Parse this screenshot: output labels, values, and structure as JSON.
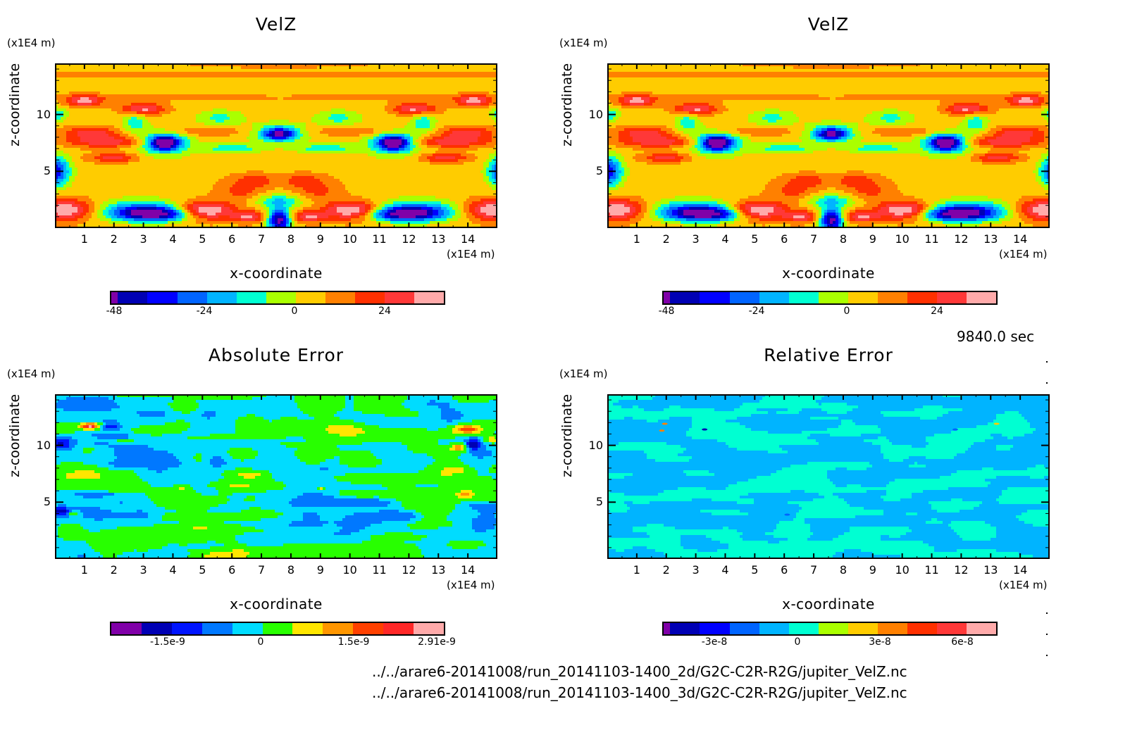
{
  "panels": [
    {
      "id": "velz-2d",
      "title": "VelZ",
      "y_unit": "(x1E4 m)",
      "x_unit": "(x1E4 m)",
      "xlabel": "x-coordinate",
      "ylabel": "z-coordinate",
      "x_ticks": [
        "1",
        "2",
        "3",
        "4",
        "5",
        "6",
        "7",
        "8",
        "9",
        "10",
        "11",
        "12",
        "13",
        "14"
      ],
      "y_ticks": [
        "10",
        "5"
      ],
      "colorbar": {
        "colors": [
          "#8000a8",
          "#0000b4",
          "#0000ff",
          "#0064ff",
          "#00b4ff",
          "#00ffd2",
          "#aaff00",
          "#ffcc00",
          "#ff8000",
          "#ff3000",
          "#ff3838",
          "#ffaaaa"
        ],
        "labels": [
          "-48",
          "-24",
          "0",
          "24"
        ]
      },
      "field": "symmetric"
    },
    {
      "id": "velz-3d",
      "title": "VelZ",
      "y_unit": "(x1E4 m)",
      "x_unit": "(x1E4 m)",
      "xlabel": "x-coordinate",
      "ylabel": "z-coordinate",
      "x_ticks": [
        "1",
        "2",
        "3",
        "4",
        "5",
        "6",
        "7",
        "8",
        "9",
        "10",
        "11",
        "12",
        "13",
        "14"
      ],
      "y_ticks": [
        "10",
        "5"
      ],
      "colorbar": {
        "colors": [
          "#8000a8",
          "#0000b4",
          "#0000ff",
          "#0064ff",
          "#00b4ff",
          "#00ffd2",
          "#aaff00",
          "#ffcc00",
          "#ff8000",
          "#ff3000",
          "#ff3838",
          "#ffaaaa"
        ],
        "labels": [
          "-48",
          "-24",
          "0",
          "24"
        ]
      },
      "field": "symmetric"
    },
    {
      "id": "abs-error",
      "title": "Absolute Error",
      "y_unit": "(x1E4 m)",
      "x_unit": "(x1E4 m)",
      "xlabel": "x-coordinate",
      "ylabel": "z-coordinate",
      "x_ticks": [
        "1",
        "2",
        "3",
        "4",
        "5",
        "6",
        "7",
        "8",
        "9",
        "10",
        "11",
        "12",
        "13",
        "14"
      ],
      "y_ticks": [
        "10",
        "5"
      ],
      "colorbar": {
        "colors": [
          "#8000a8",
          "#0000b4",
          "#0014ff",
          "#0078ff",
          "#00dcff",
          "#28ff00",
          "#ffe600",
          "#ff9600",
          "#ff4000",
          "#ff2828",
          "#ffaaaa"
        ],
        "labels": [
          "-1.5e-9",
          "0",
          "1.5e-9",
          "2.91e-9"
        ]
      },
      "field": "abs"
    },
    {
      "id": "rel-error",
      "title": "Relative Error",
      "y_unit": "(x1E4 m)",
      "x_unit": "(x1E4 m)",
      "xlabel": "x-coordinate",
      "ylabel": "z-coordinate",
      "x_ticks": [
        "1",
        "2",
        "3",
        "4",
        "5",
        "6",
        "7",
        "8",
        "9",
        "10",
        "11",
        "12",
        "13",
        "14"
      ],
      "y_ticks": [
        "10",
        "5"
      ],
      "colorbar": {
        "colors": [
          "#8000a8",
          "#0000b4",
          "#0000ff",
          "#0064ff",
          "#00b4ff",
          "#00ffd2",
          "#aaff00",
          "#ffcc00",
          "#ff8000",
          "#ff3000",
          "#ff3838",
          "#ffaaaa"
        ],
        "labels": [
          "-3e-8",
          "0",
          "3e-8",
          "6e-8"
        ]
      },
      "field": "rel"
    }
  ],
  "timestamp": "9840.0 sec",
  "files": [
    "../../arare6-20141008/run_20141103-1400_2d/G2C-C2R-R2G/jupiter_VelZ.nc",
    "../../arare6-20141008/run_20141103-1400_3d/G2C-C2R-R2G/jupiter_VelZ.nc"
  ],
  "chart_data": [
    {
      "type": "heatmap",
      "title": "VelZ",
      "xlabel": "x-coordinate (x1E4 m)",
      "ylabel": "z-coordinate (x1E4 m)",
      "xlim": [
        0,
        15
      ],
      "ylim": [
        0,
        14.5
      ],
      "colorbar_ticks": [
        -48,
        -24,
        0,
        24
      ],
      "colorbar_range": [
        -54,
        36
      ]
    },
    {
      "type": "heatmap",
      "title": "VelZ",
      "xlabel": "x-coordinate (x1E4 m)",
      "ylabel": "z-coordinate (x1E4 m)",
      "xlim": [
        0,
        15
      ],
      "ylim": [
        0,
        14.5
      ],
      "colorbar_ticks": [
        -48,
        -24,
        0,
        24
      ],
      "colorbar_range": [
        -54,
        36
      ]
    },
    {
      "type": "heatmap",
      "title": "Absolute Error",
      "xlabel": "x-coordinate (x1E4 m)",
      "ylabel": "z-coordinate (x1E4 m)",
      "xlim": [
        0,
        15
      ],
      "ylim": [
        0,
        14.5
      ],
      "colorbar_ticks": [
        "-1.5e-9",
        "0",
        "1.5e-9",
        "2.91e-9"
      ]
    },
    {
      "type": "heatmap",
      "title": "Relative Error",
      "xlabel": "x-coordinate (x1E4 m)",
      "ylabel": "z-coordinate (x1E4 m)",
      "xlim": [
        0,
        15
      ],
      "ylim": [
        0,
        14.5
      ],
      "colorbar_ticks": [
        "-3e-8",
        "0",
        "3e-8",
        "6e-8"
      ]
    }
  ]
}
